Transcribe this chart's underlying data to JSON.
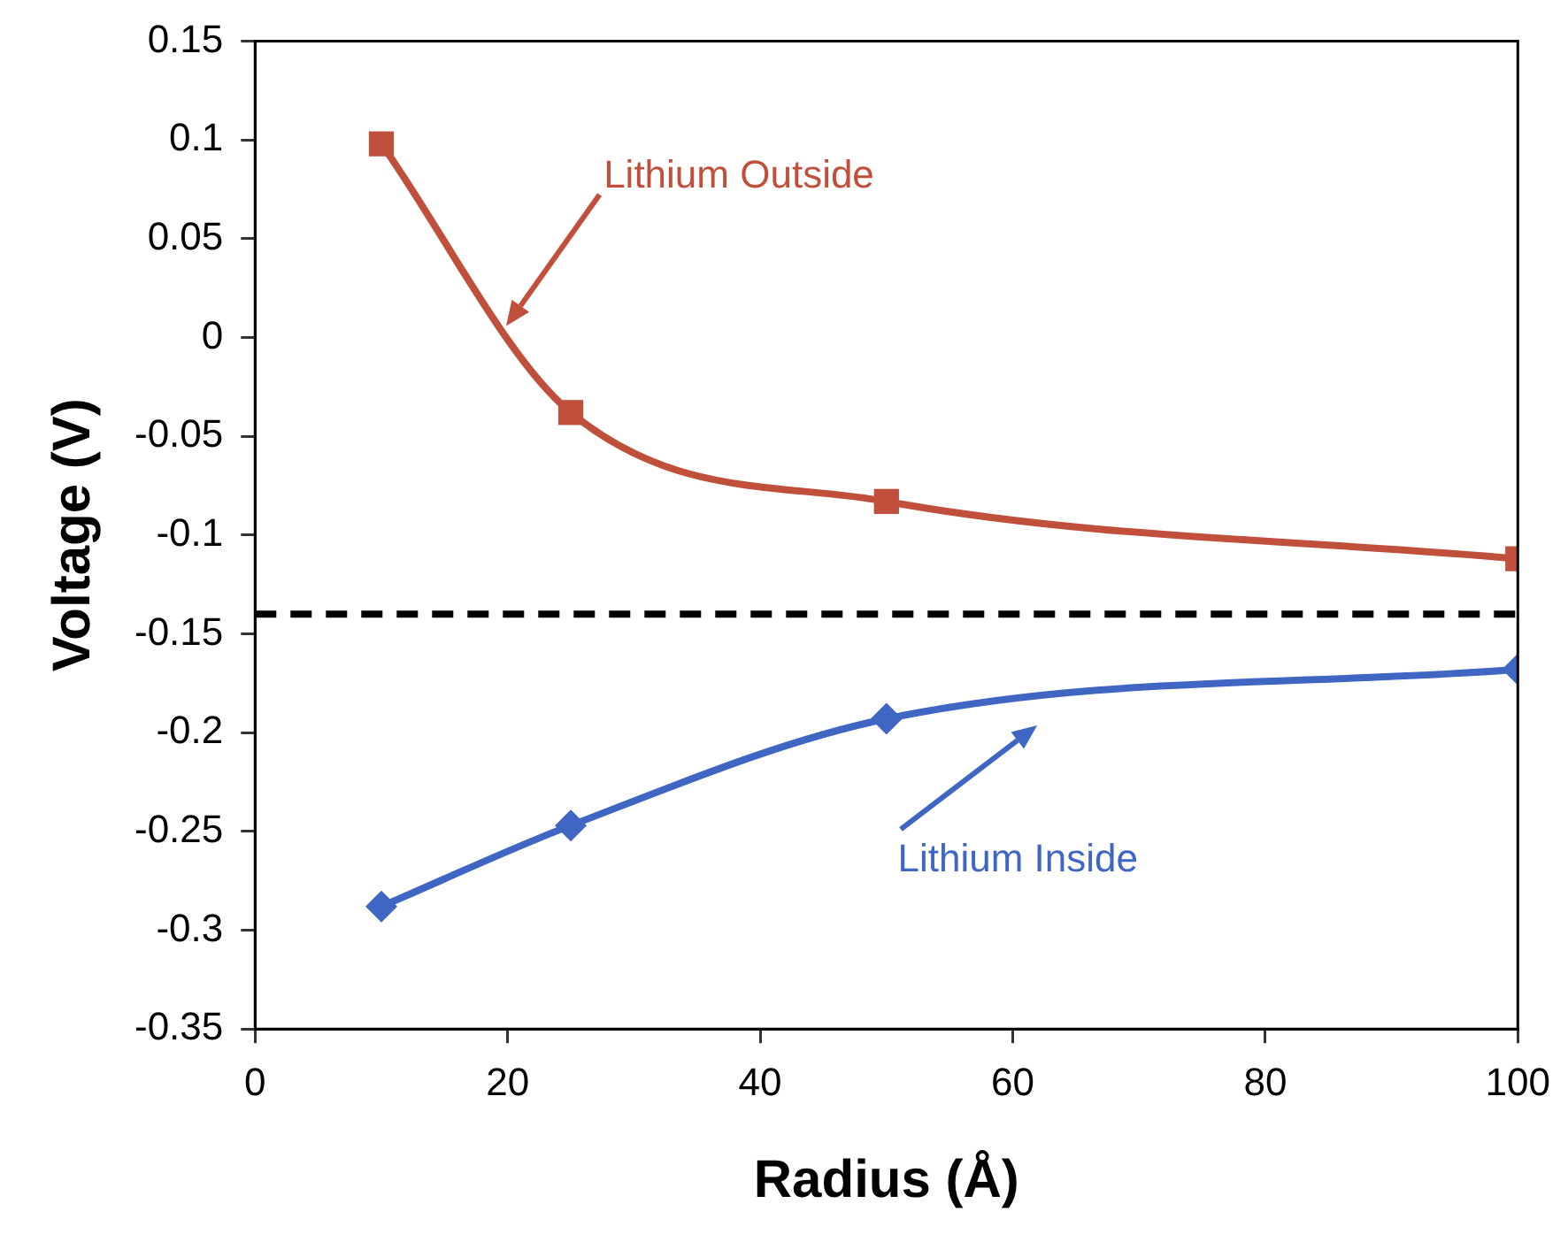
{
  "chart_data": {
    "type": "line",
    "xlabel": "Radius (Å)",
    "ylabel": "Voltage (V)",
    "x": [
      10,
      25,
      50,
      100
    ],
    "series": [
      {
        "color": "#c0503c",
        "marker": "square",
        "values": [
          0.098,
          -0.038,
          -0.083,
          -0.112
        ]
      },
      {
        "color": "#3f66c2",
        "marker": "diamond",
        "values": [
          -0.288,
          -0.247,
          -0.193,
          -0.168
        ]
      }
    ],
    "xlim": [
      0,
      100
    ],
    "xticks": [
      0,
      20,
      40,
      60,
      80,
      100
    ],
    "ylim": [
      -0.35,
      0.15
    ],
    "yticks": [
      -0.35,
      -0.3,
      -0.25,
      -0.2,
      -0.15,
      -0.1,
      -0.05,
      0,
      0.05,
      0.1,
      0.15
    ],
    "ref_lines": [
      {
        "axis": "y",
        "value": -0.14,
        "color": "#000000",
        "line_style": "dashed"
      }
    ],
    "annotations": [
      "Lithium Outside",
      "Lithium Inside"
    ],
    "grid": false,
    "legend": false,
    "line_style": "solid"
  }
}
